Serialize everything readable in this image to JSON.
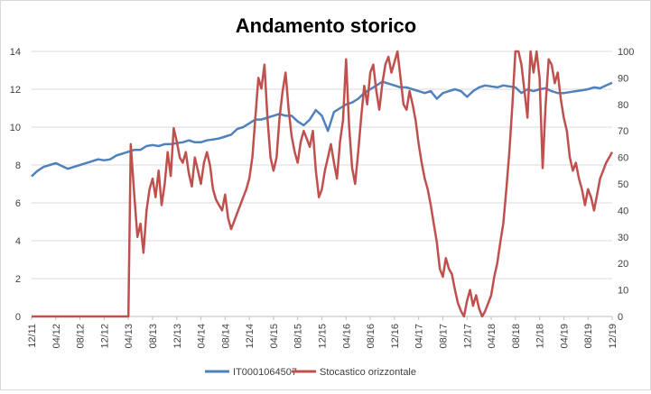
{
  "chart_data": {
    "type": "line",
    "title": "Andamento storico",
    "x_tick_labels": [
      "12/11",
      "04/12",
      "08/12",
      "12/12",
      "04/13",
      "08/13",
      "12/13",
      "04/14",
      "08/14",
      "12/14",
      "04/15",
      "08/15",
      "12/15",
      "04/16",
      "08/16",
      "12/16",
      "04/17",
      "08/17",
      "12/17",
      "04/18",
      "08/18",
      "12/18",
      "04/19",
      "08/19",
      "12/19"
    ],
    "x_range": [
      0,
      96
    ],
    "y_left": {
      "range": [
        0,
        14
      ],
      "ticks": [
        0,
        2,
        4,
        6,
        8,
        10,
        12,
        14
      ]
    },
    "y_right": {
      "range": [
        0,
        100
      ],
      "ticks": [
        0,
        10,
        20,
        30,
        40,
        50,
        60,
        70,
        80,
        90,
        100
      ]
    },
    "grid": "horizontal",
    "legend_position": "bottom",
    "colors": {
      "series1": "#4f81bd",
      "series2": "#c0504d",
      "grid": "#d9d9d9",
      "axis": "#bfbfbf"
    },
    "series": [
      {
        "name": "IT0001064507",
        "axis": "left",
        "points": [
          [
            0,
            7.4
          ],
          [
            1,
            7.7
          ],
          [
            2,
            7.9
          ],
          [
            3,
            8.0
          ],
          [
            4,
            8.1
          ],
          [
            5,
            7.95
          ],
          [
            6,
            7.8
          ],
          [
            7,
            7.9
          ],
          [
            8,
            8.0
          ],
          [
            9,
            8.1
          ],
          [
            10,
            8.2
          ],
          [
            11,
            8.3
          ],
          [
            12,
            8.25
          ],
          [
            13,
            8.3
          ],
          [
            14,
            8.5
          ],
          [
            15,
            8.6
          ],
          [
            16,
            8.7
          ],
          [
            17,
            8.8
          ],
          [
            18,
            8.8
          ],
          [
            19,
            9.0
          ],
          [
            20,
            9.05
          ],
          [
            21,
            9.0
          ],
          [
            22,
            9.1
          ],
          [
            23,
            9.1
          ],
          [
            24,
            9.15
          ],
          [
            25,
            9.2
          ],
          [
            26,
            9.3
          ],
          [
            27,
            9.2
          ],
          [
            28,
            9.2
          ],
          [
            29,
            9.3
          ],
          [
            30,
            9.35
          ],
          [
            31,
            9.4
          ],
          [
            32,
            9.5
          ],
          [
            33,
            9.6
          ],
          [
            34,
            9.9
          ],
          [
            35,
            10.0
          ],
          [
            36,
            10.2
          ],
          [
            37,
            10.4
          ],
          [
            38,
            10.4
          ],
          [
            39,
            10.5
          ],
          [
            40,
            10.6
          ],
          [
            41,
            10.7
          ],
          [
            42,
            10.6
          ],
          [
            43,
            10.6
          ],
          [
            44,
            10.3
          ],
          [
            45,
            10.1
          ],
          [
            46,
            10.4
          ],
          [
            47,
            10.9
          ],
          [
            48,
            10.6
          ],
          [
            49,
            9.8
          ],
          [
            50,
            10.8
          ],
          [
            51,
            11.0
          ],
          [
            52,
            11.2
          ],
          [
            53,
            11.3
          ],
          [
            54,
            11.5
          ],
          [
            55,
            11.8
          ],
          [
            56,
            12.0
          ],
          [
            57,
            12.2
          ],
          [
            58,
            12.4
          ],
          [
            59,
            12.3
          ],
          [
            60,
            12.2
          ],
          [
            61,
            12.1
          ],
          [
            62,
            12.1
          ],
          [
            63,
            12.0
          ],
          [
            64,
            11.9
          ],
          [
            65,
            11.8
          ],
          [
            66,
            11.9
          ],
          [
            67,
            11.5
          ],
          [
            68,
            11.8
          ],
          [
            69,
            11.9
          ],
          [
            70,
            12.0
          ],
          [
            71,
            11.9
          ],
          [
            72,
            11.6
          ],
          [
            73,
            11.9
          ],
          [
            74,
            12.1
          ],
          [
            75,
            12.2
          ],
          [
            76,
            12.15
          ],
          [
            77,
            12.1
          ],
          [
            78,
            12.2
          ],
          [
            79,
            12.15
          ],
          [
            80,
            12.1
          ],
          [
            81,
            11.8
          ],
          [
            82,
            12.0
          ],
          [
            83,
            11.9
          ],
          [
            84,
            12.0
          ],
          [
            85,
            12.05
          ],
          [
            86,
            11.9
          ],
          [
            87,
            11.8
          ],
          [
            88,
            11.8
          ],
          [
            89,
            11.85
          ],
          [
            90,
            11.9
          ],
          [
            91,
            11.95
          ],
          [
            92,
            12.0
          ],
          [
            93,
            12.1
          ],
          [
            94,
            12.05
          ],
          [
            95,
            12.2
          ],
          [
            96,
            12.35
          ]
        ]
      },
      {
        "name": "Stocastico orizzontale",
        "axis": "right",
        "points": [
          [
            0,
            0
          ],
          [
            8,
            0
          ],
          [
            16,
            0
          ],
          [
            16.4,
            65
          ],
          [
            17,
            45
          ],
          [
            17.5,
            30
          ],
          [
            18,
            35
          ],
          [
            18.5,
            24
          ],
          [
            19,
            40
          ],
          [
            19.5,
            48
          ],
          [
            20,
            52
          ],
          [
            20.5,
            45
          ],
          [
            21,
            55
          ],
          [
            21.5,
            42
          ],
          [
            22,
            50
          ],
          [
            22.5,
            62
          ],
          [
            23,
            53
          ],
          [
            23.5,
            71
          ],
          [
            24,
            66
          ],
          [
            24.5,
            60
          ],
          [
            25,
            58
          ],
          [
            25.5,
            62
          ],
          [
            26,
            54
          ],
          [
            26.5,
            49
          ],
          [
            27,
            60
          ],
          [
            27.5,
            55
          ],
          [
            28,
            50
          ],
          [
            28.5,
            58
          ],
          [
            29,
            62
          ],
          [
            29.5,
            57
          ],
          [
            30,
            48
          ],
          [
            30.5,
            44
          ],
          [
            31,
            42
          ],
          [
            31.5,
            40
          ],
          [
            32,
            46
          ],
          [
            32.5,
            37
          ],
          [
            33,
            33
          ],
          [
            33.5,
            36
          ],
          [
            34,
            39
          ],
          [
            34.5,
            42
          ],
          [
            35,
            45
          ],
          [
            35.5,
            48
          ],
          [
            36,
            52
          ],
          [
            36.5,
            60
          ],
          [
            37,
            75
          ],
          [
            37.5,
            90
          ],
          [
            38,
            86
          ],
          [
            38.5,
            95
          ],
          [
            39,
            75
          ],
          [
            39.5,
            60
          ],
          [
            40,
            55
          ],
          [
            40.5,
            60
          ],
          [
            41,
            75
          ],
          [
            41.5,
            85
          ],
          [
            42,
            92
          ],
          [
            42.5,
            78
          ],
          [
            43,
            68
          ],
          [
            43.5,
            62
          ],
          [
            44,
            58
          ],
          [
            44.5,
            66
          ],
          [
            45,
            70
          ],
          [
            45.5,
            67
          ],
          [
            46,
            64
          ],
          [
            46.5,
            70
          ],
          [
            47,
            55
          ],
          [
            47.5,
            45
          ],
          [
            48,
            48
          ],
          [
            48.5,
            55
          ],
          [
            49,
            60
          ],
          [
            49.5,
            65
          ],
          [
            50,
            58
          ],
          [
            50.5,
            52
          ],
          [
            51,
            66
          ],
          [
            51.5,
            74
          ],
          [
            52,
            97
          ],
          [
            52.5,
            72
          ],
          [
            53,
            56
          ],
          [
            53.5,
            50
          ],
          [
            54,
            62
          ],
          [
            54.5,
            75
          ],
          [
            55,
            87
          ],
          [
            55.5,
            80
          ],
          [
            56,
            92
          ],
          [
            56.5,
            95
          ],
          [
            57,
            85
          ],
          [
            57.5,
            78
          ],
          [
            58,
            88
          ],
          [
            58.5,
            95
          ],
          [
            59,
            98
          ],
          [
            59.5,
            92
          ],
          [
            60,
            96
          ],
          [
            60.5,
            100
          ],
          [
            61,
            90
          ],
          [
            61.5,
            80
          ],
          [
            62,
            78
          ],
          [
            62.5,
            85
          ],
          [
            63,
            80
          ],
          [
            63.5,
            74
          ],
          [
            64,
            65
          ],
          [
            64.5,
            58
          ],
          [
            65,
            52
          ],
          [
            65.5,
            48
          ],
          [
            66,
            42
          ],
          [
            66.5,
            35
          ],
          [
            67,
            28
          ],
          [
            67.5,
            18
          ],
          [
            68,
            15
          ],
          [
            68.5,
            22
          ],
          [
            69,
            18
          ],
          [
            69.5,
            16
          ],
          [
            70,
            10
          ],
          [
            70.5,
            5
          ],
          [
            71,
            2
          ],
          [
            71.5,
            0
          ],
          [
            72,
            6
          ],
          [
            72.5,
            10
          ],
          [
            73,
            4
          ],
          [
            73.5,
            8
          ],
          [
            74,
            3
          ],
          [
            74.5,
            0
          ],
          [
            75,
            2
          ],
          [
            75.5,
            5
          ],
          [
            76,
            8
          ],
          [
            76.5,
            15
          ],
          [
            77,
            20
          ],
          [
            77.5,
            28
          ],
          [
            78,
            35
          ],
          [
            78.5,
            48
          ],
          [
            79,
            62
          ],
          [
            79.5,
            80
          ],
          [
            80,
            100
          ],
          [
            80.5,
            100
          ],
          [
            81,
            95
          ],
          [
            81.5,
            85
          ],
          [
            82,
            75
          ],
          [
            82.5,
            100
          ],
          [
            83,
            92
          ],
          [
            83.5,
            100
          ],
          [
            84,
            90
          ],
          [
            84.5,
            56
          ],
          [
            85,
            80
          ],
          [
            85.5,
            97
          ],
          [
            86,
            95
          ],
          [
            86.5,
            88
          ],
          [
            87,
            92
          ],
          [
            87.5,
            82
          ],
          [
            88,
            75
          ],
          [
            88.5,
            70
          ],
          [
            89,
            60
          ],
          [
            89.5,
            55
          ],
          [
            90,
            58
          ],
          [
            90.5,
            52
          ],
          [
            91,
            48
          ],
          [
            91.5,
            42
          ],
          [
            92,
            48
          ],
          [
            92.5,
            45
          ],
          [
            93,
            40
          ],
          [
            93.5,
            46
          ],
          [
            94,
            52
          ],
          [
            94.5,
            55
          ],
          [
            95,
            58
          ],
          [
            95.5,
            60
          ],
          [
            96,
            62
          ]
        ]
      }
    ]
  }
}
